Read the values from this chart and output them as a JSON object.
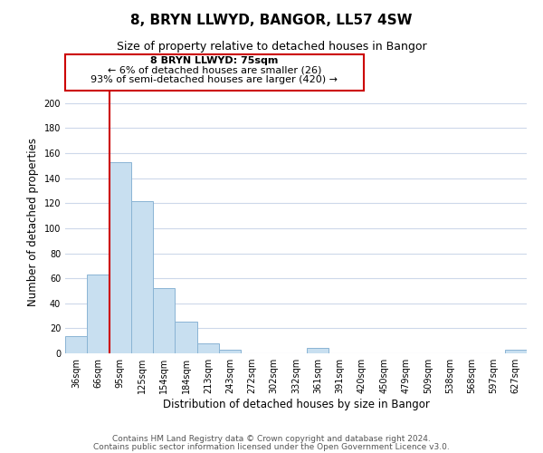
{
  "title": "8, BRYN LLWYD, BANGOR, LL57 4SW",
  "subtitle": "Size of property relative to detached houses in Bangor",
  "xlabel": "Distribution of detached houses by size in Bangor",
  "ylabel": "Number of detached properties",
  "bar_labels": [
    "36sqm",
    "66sqm",
    "95sqm",
    "125sqm",
    "154sqm",
    "184sqm",
    "213sqm",
    "243sqm",
    "272sqm",
    "302sqm",
    "332sqm",
    "361sqm",
    "391sqm",
    "420sqm",
    "450sqm",
    "479sqm",
    "509sqm",
    "538sqm",
    "568sqm",
    "597sqm",
    "627sqm"
  ],
  "bar_values": [
    14,
    63,
    153,
    122,
    52,
    25,
    8,
    3,
    0,
    0,
    0,
    4,
    0,
    0,
    0,
    0,
    0,
    0,
    0,
    0,
    3
  ],
  "bar_color": "#c8dff0",
  "bar_edge_color": "#8ab4d4",
  "ylim": [
    0,
    210
  ],
  "yticks": [
    0,
    20,
    40,
    60,
    80,
    100,
    120,
    140,
    160,
    180,
    200
  ],
  "vline_x": 1.5,
  "vline_color": "#cc0000",
  "annotation_title": "8 BRYN LLWYD: 75sqm",
  "annotation_line1": "← 6% of detached houses are smaller (26)",
  "annotation_line2": "93% of semi-detached houses are larger (420) →",
  "annotation_box_color": "#ffffff",
  "annotation_box_edge": "#cc0000",
  "footer1": "Contains HM Land Registry data © Crown copyright and database right 2024.",
  "footer2": "Contains public sector information licensed under the Open Government Licence v3.0.",
  "bg_color": "#ffffff",
  "grid_color": "#cdd8ea",
  "title_fontsize": 11,
  "subtitle_fontsize": 9,
  "axis_label_fontsize": 8.5,
  "tick_fontsize": 7,
  "annotation_fontsize": 8,
  "footer_fontsize": 6.5
}
